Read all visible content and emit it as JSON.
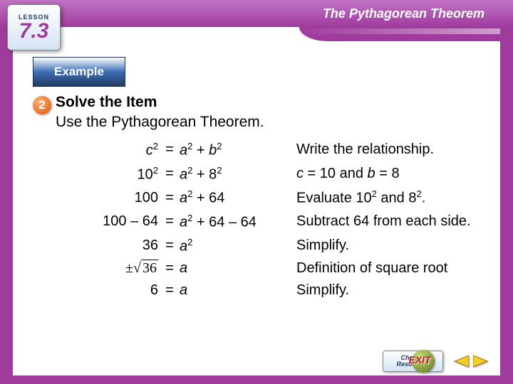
{
  "colors": {
    "brand_purple": "#a03b9e",
    "brand_purple_light": "#c173c5",
    "deep_blue": "#233a63",
    "mid_blue": "#3b6fb5",
    "orange": "#e05200",
    "arrow_yellow": "#f5d020",
    "green_dark": "#5a7020",
    "exit_red": "#c41230"
  },
  "header": {
    "title": "The Pythagorean Theorem"
  },
  "lesson": {
    "label": "LESSON",
    "number": "7.3"
  },
  "example_label": "Example",
  "step_number": "2",
  "content": {
    "heading": "Solve the Item",
    "subheading": "Use the Pythagorean Theorem."
  },
  "work": [
    {
      "lhs_html": "<span class='italic'>c</span><sup>2</sup>",
      "rhs_html": "<span class='italic'>a</span><sup>2</sup> + <span class='italic'>b</span><sup>2</sup>",
      "explain_html": "Write the relationship."
    },
    {
      "lhs_html": "10<sup>2</sup>",
      "rhs_html": "<span class='italic'>a</span><sup>2</sup> + 8<sup>2</sup>",
      "explain_html": "<span class='italic'>c</span> = 10 and <span class='italic'>b</span> = 8"
    },
    {
      "lhs_html": "100",
      "rhs_html": "<span class='italic'>a</span><sup>2</sup> + 64",
      "explain_html": "Evaluate 10<sup>2</sup> and 8<sup>2</sup>."
    },
    {
      "lhs_html": "100 – 64",
      "rhs_html": "<span class='italic'>a</span><sup>2</sup> + 64 – 64",
      "explain_html": "Subtract 64 from each side."
    },
    {
      "lhs_html": "36",
      "rhs_html": "<span class='italic'>a</span><sup>2</sup>",
      "explain_html": "Simplify."
    },
    {
      "lhs_html": "<span class='sqrt-img'>±√<span style='border-top:1px solid #000;padding:0 2px'>36</span></span>",
      "rhs_html": "<span class='italic'>a</span>",
      "explain_html": "Definition of square root"
    },
    {
      "lhs_html": "6",
      "rhs_html": "<span class='italic'>a</span>",
      "explain_html": "Simplify."
    }
  ],
  "footer": {
    "exit": "EXIT",
    "resources_l1": "Chapter",
    "resources_l2": "Resources"
  }
}
